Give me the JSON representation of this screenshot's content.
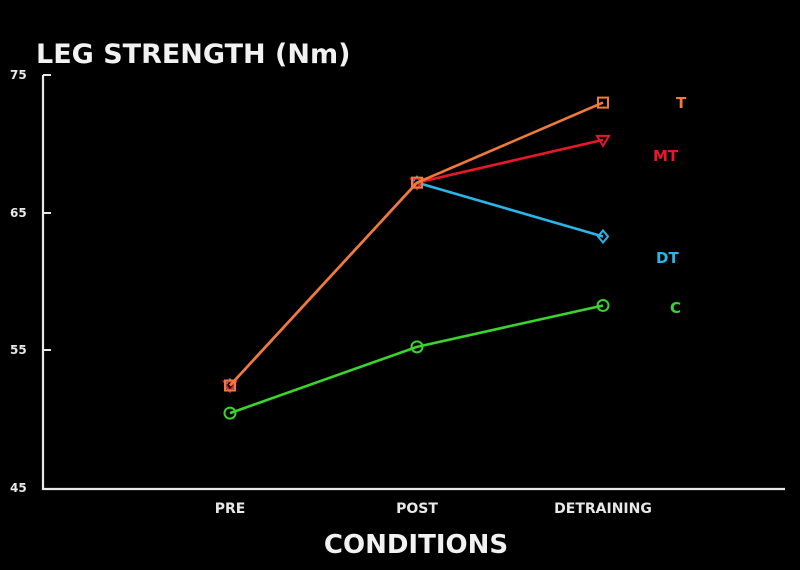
{
  "chart_data": {
    "type": "line",
    "title": "LEG STRENGTH (Nm)",
    "xlabel": "CONDITIONS",
    "ylabel": "",
    "categories": [
      "PRE",
      "POST",
      "DETRAINING"
    ],
    "ylim": [
      45,
      75
    ],
    "yticks": [
      "45",
      "55",
      "65",
      "75"
    ],
    "grid": false,
    "legend_placement": "right, inline with line ends",
    "series": [
      {
        "name": "T",
        "color": "#f07a3a",
        "marker": "square",
        "values": [
          52.5,
          67.2,
          73.0
        ]
      },
      {
        "name": "MT",
        "color": "#e8182a",
        "marker": "triangle",
        "values": [
          52.5,
          67.2,
          70.3
        ]
      },
      {
        "name": "DT",
        "color": "#2ab4e8",
        "marker": "diamond",
        "values": [
          52.5,
          67.2,
          63.3
        ]
      },
      {
        "name": "C",
        "color": "#3bd42c",
        "marker": "circle",
        "values": [
          50.5,
          55.3,
          58.3
        ]
      }
    ]
  }
}
